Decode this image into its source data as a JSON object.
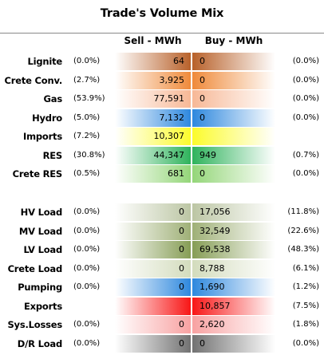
{
  "chart_data": {
    "type": "table",
    "title": "Trade's Volume Mix",
    "columns": [
      "Sell - MWh",
      "Buy - MWh"
    ],
    "groups": [
      {
        "rows": [
          {
            "label": "Lignite",
            "sell_pct": "(0.0%)",
            "sell": "64",
            "buy": "0",
            "buy_pct": "(0.0%)",
            "color": "#b8612a"
          },
          {
            "label": "Crete Conv.",
            "sell_pct": "(2.7%)",
            "sell": "3,925",
            "buy": "0",
            "buy_pct": "(0.0%)",
            "color": "#ef8a3a"
          },
          {
            "label": "Gas",
            "sell_pct": "(53.9%)",
            "sell": "77,591",
            "buy": "0",
            "buy_pct": "(0.0%)",
            "color": "#f7b896"
          },
          {
            "label": "Hydro",
            "sell_pct": "(5.0%)",
            "sell": "7,132",
            "buy": "0",
            "buy_pct": "(0.0%)",
            "color": "#2e88de"
          },
          {
            "label": "Imports",
            "sell_pct": "(7.2%)",
            "sell": "10,307",
            "buy": "",
            "buy_pct": "",
            "color": "#fbfb2c"
          },
          {
            "label": "RES",
            "sell_pct": "(30.8%)",
            "sell": "44,347",
            "buy": "949",
            "buy_pct": "(0.7%)",
            "color": "#2fb35c"
          },
          {
            "label": "Crete RES",
            "sell_pct": "(0.5%)",
            "sell": "681",
            "buy": "0",
            "buy_pct": "(0.0%)",
            "color": "#94d679"
          }
        ]
      },
      {
        "rows": [
          {
            "label": "HV Load",
            "sell_pct": "(0.0%)",
            "sell": "0",
            "buy": "17,056",
            "buy_pct": "(11.8%)",
            "color": "#bcc6a4"
          },
          {
            "label": "MV Load",
            "sell_pct": "(0.0%)",
            "sell": "0",
            "buy": "32,549",
            "buy_pct": "(22.6%)",
            "color": "#9fb077"
          },
          {
            "label": "LV Load",
            "sell_pct": "(0.0%)",
            "sell": "0",
            "buy": "69,538",
            "buy_pct": "(48.3%)",
            "color": "#869d55"
          },
          {
            "label": "Crete Load",
            "sell_pct": "(0.0%)",
            "sell": "0",
            "buy": "8,788",
            "buy_pct": "(6.1%)",
            "color": "#d3dcbd"
          },
          {
            "label": "Pumping",
            "sell_pct": "(0.0%)",
            "sell": "0",
            "buy": "1,690",
            "buy_pct": "(1.2%)",
            "color": "#2e88de"
          },
          {
            "label": "Exports",
            "sell_pct": "",
            "sell": "",
            "buy": "10,857",
            "buy_pct": "(7.5%)",
            "color": "#f81616"
          },
          {
            "label": "Sys.Losses",
            "sell_pct": "(0.0%)",
            "sell": "0",
            "buy": "2,620",
            "buy_pct": "(1.8%)",
            "color": "#f8a2a2"
          },
          {
            "label": "D/R Load",
            "sell_pct": "(0.0%)",
            "sell": "0",
            "buy": "0",
            "buy_pct": "(0.0%)",
            "color": "#727272"
          }
        ]
      }
    ]
  }
}
